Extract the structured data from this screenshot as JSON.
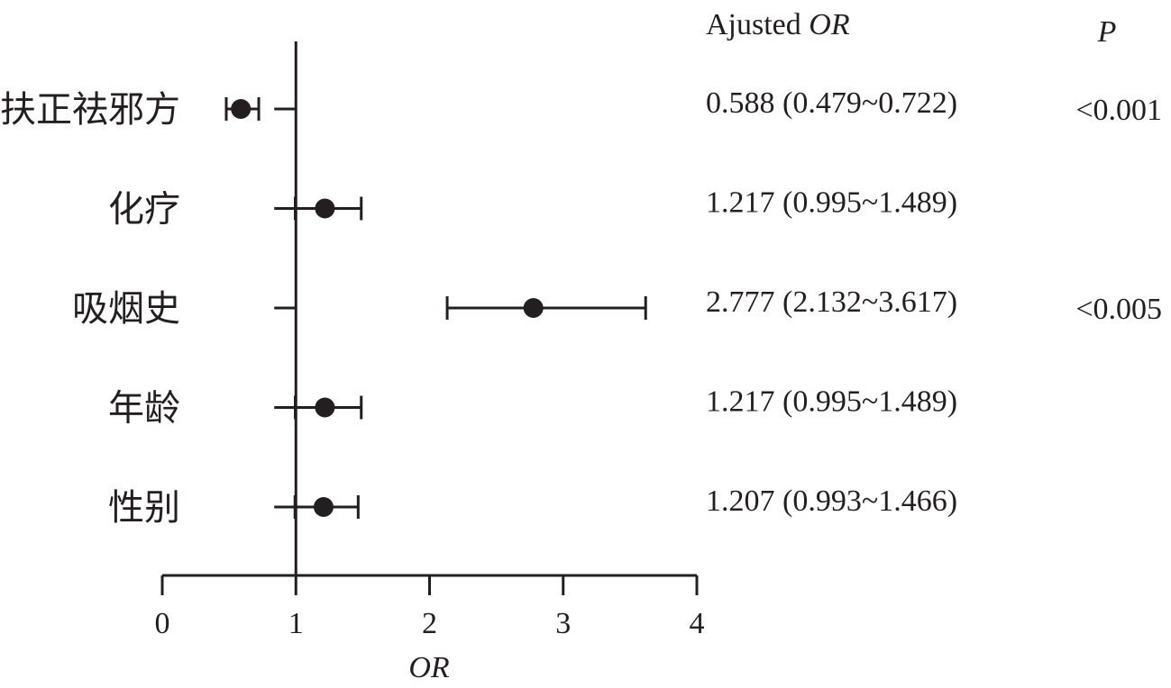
{
  "chart_data": {
    "type": "forest",
    "xlabel": "OR",
    "xlim": [
      0,
      4
    ],
    "xticks": [
      "0",
      "1",
      "2",
      "3",
      "4"
    ],
    "reference_line": 1,
    "or_column_header": {
      "text": "Ajusted ",
      "italic": "OR"
    },
    "p_column_header": "P",
    "rows": [
      {
        "label": "扶正祛邪方",
        "or": 0.588,
        "lower": 0.479,
        "upper": 0.722,
        "or_text": "0.588 (0.479~0.722)",
        "p_text": "<0.001"
      },
      {
        "label": "化疗",
        "or": 1.217,
        "lower": 0.995,
        "upper": 1.489,
        "or_text": "1.217 (0.995~1.489)",
        "p_text": ""
      },
      {
        "label": "吸烟史",
        "or": 2.777,
        "lower": 2.132,
        "upper": 3.617,
        "or_text": "2.777 (2.132~3.617)",
        "p_text": "<0.005"
      },
      {
        "label": "年龄",
        "or": 1.217,
        "lower": 0.995,
        "upper": 1.489,
        "or_text": "1.217 (0.995~1.489)",
        "p_text": ""
      },
      {
        "label": "性别",
        "or": 1.207,
        "lower": 0.993,
        "upper": 1.466,
        "or_text": "1.207 (0.993~1.466)",
        "p_text": ""
      }
    ],
    "colors": {
      "ink": "#231f20",
      "background": "#ffffff"
    }
  }
}
